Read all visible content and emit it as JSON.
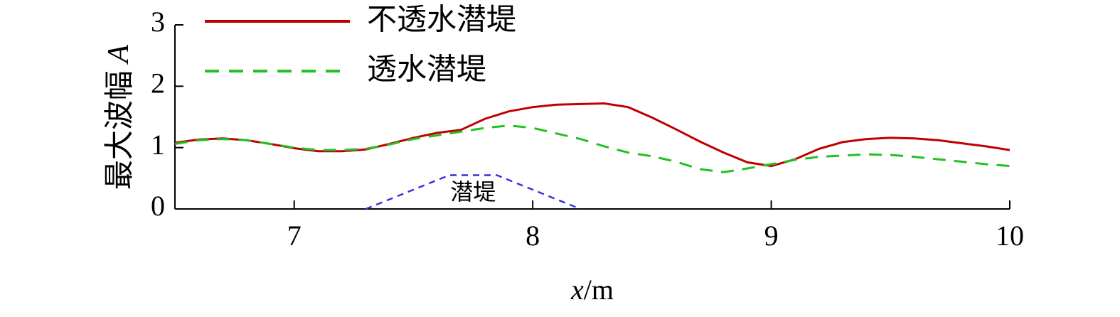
{
  "chart_data": {
    "type": "line",
    "ylabel": "最大波幅",
    "ylabel_var": "A",
    "xlabel_var": "x",
    "xlabel_unit": "/m",
    "xlim": [
      6.5,
      10
    ],
    "xticks": [
      7,
      8,
      9,
      10
    ],
    "ylim": [
      0,
      3
    ],
    "yticks": [
      0,
      1,
      2,
      3
    ],
    "x": [
      6.5,
      6.6,
      6.7,
      6.8,
      6.9,
      7.0,
      7.1,
      7.2,
      7.3,
      7.4,
      7.5,
      7.6,
      7.7,
      7.8,
      7.9,
      8.0,
      8.1,
      8.2,
      8.3,
      8.4,
      8.5,
      8.6,
      8.7,
      8.8,
      8.9,
      9.0,
      9.1,
      9.2,
      9.3,
      9.4,
      9.5,
      9.6,
      9.7,
      9.8,
      9.9,
      10.0
    ],
    "series": [
      {
        "name": "不透水潜堤",
        "color": "#c00000",
        "dash": false,
        "values": [
          1.08,
          1.13,
          1.15,
          1.12,
          1.06,
          0.99,
          0.94,
          0.94,
          0.97,
          1.06,
          1.16,
          1.24,
          1.29,
          1.47,
          1.59,
          1.66,
          1.7,
          1.71,
          1.72,
          1.66,
          1.49,
          1.3,
          1.1,
          0.92,
          0.76,
          0.7,
          0.81,
          0.98,
          1.09,
          1.14,
          1.16,
          1.15,
          1.12,
          1.07,
          1.02,
          0.96
        ]
      },
      {
        "name": "透水潜堤",
        "color": "#22c022",
        "dash": true,
        "values": [
          1.06,
          1.12,
          1.14,
          1.12,
          1.06,
          1.0,
          0.96,
          0.96,
          0.98,
          1.05,
          1.14,
          1.2,
          1.26,
          1.32,
          1.36,
          1.32,
          1.23,
          1.14,
          1.02,
          0.92,
          0.86,
          0.77,
          0.65,
          0.6,
          0.66,
          0.73,
          0.8,
          0.85,
          0.87,
          0.89,
          0.88,
          0.85,
          0.81,
          0.77,
          0.73,
          0.7
        ]
      }
    ],
    "structure": {
      "label": "潜堤",
      "color": "#3333dd",
      "x": [
        7.3,
        7.65,
        7.85,
        8.2
      ],
      "values": [
        0,
        0.55,
        0.55,
        0
      ]
    }
  }
}
